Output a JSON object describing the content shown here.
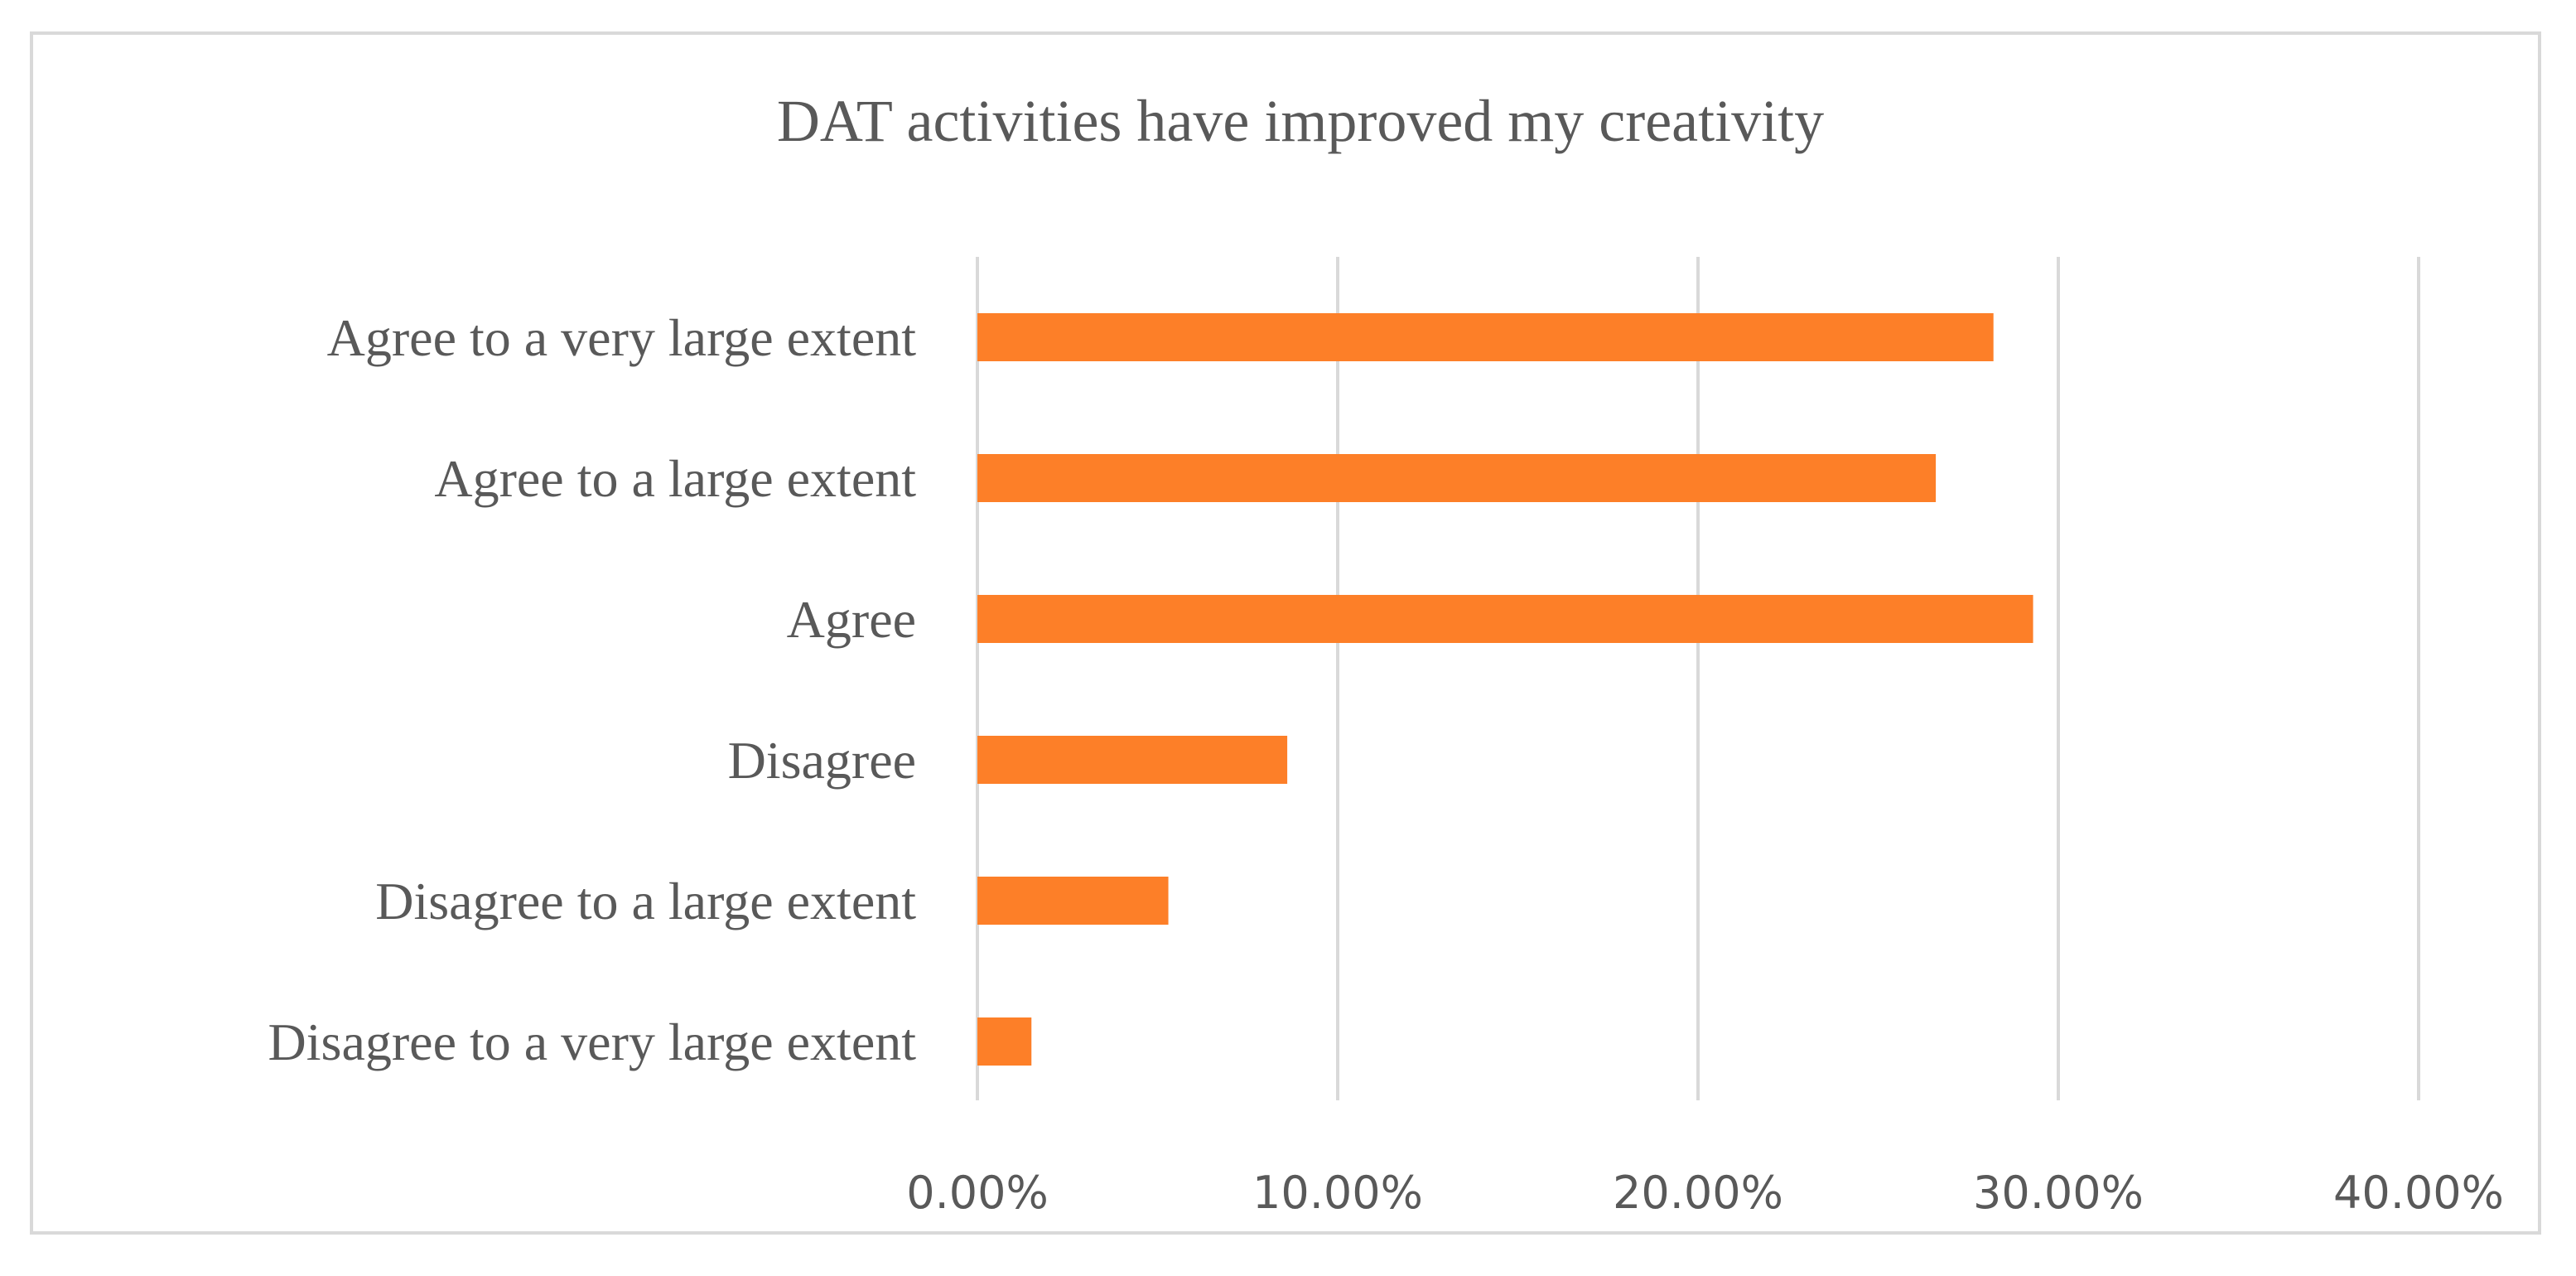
{
  "chart_data": {
    "type": "bar",
    "orientation": "horizontal",
    "title": "DAT activities have improved my creativity",
    "xlabel": "",
    "ylabel": "",
    "categories": [
      "Agree to a very large extent",
      "Agree to a large extent",
      "Agree",
      "Disagree",
      "Disagree to a large extent",
      "Disagree to a very large extent"
    ],
    "values": [
      28.2,
      26.6,
      29.3,
      8.6,
      5.3,
      1.5
    ],
    "value_unit": "%",
    "xlim": [
      0,
      40
    ],
    "x_ticks": [
      0,
      10,
      20,
      30,
      40
    ],
    "x_tick_labels": [
      "0.00%",
      "10.00%",
      "20.00%",
      "30.00%",
      "40.00%"
    ],
    "grid": "vertical",
    "legend": "none",
    "bar_color": "#fd7f28",
    "gridline_color": "#d9d9d9",
    "text_color": "#595959"
  }
}
